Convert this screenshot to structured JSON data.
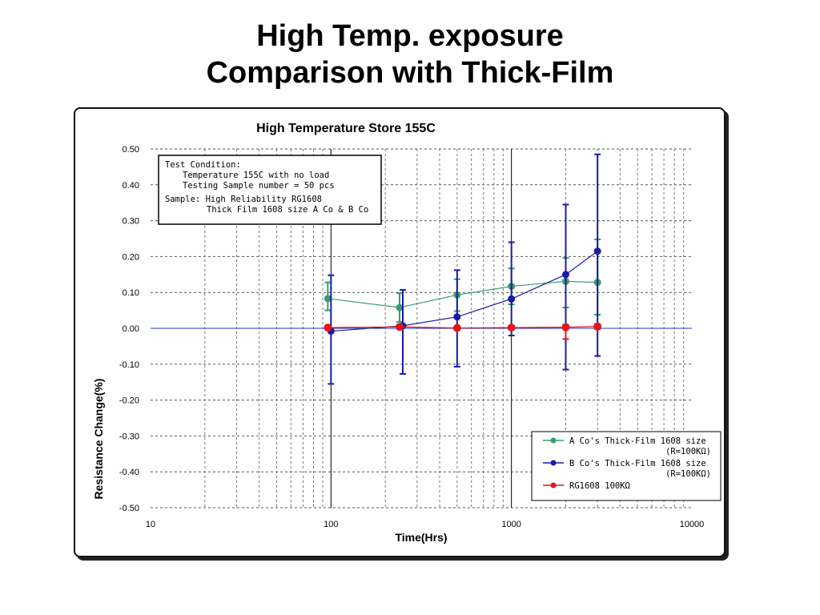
{
  "slide": {
    "title_line1": "High Temp. exposure",
    "title_line2": "Comparison with Thick-Film"
  },
  "chart_data": {
    "type": "line",
    "title": "High Temperature Store 155C",
    "xlabel": "Time(Hrs)",
    "ylabel": "Resistance Change(%)",
    "xscale": "log",
    "xlim": [
      10,
      10000
    ],
    "ylim": [
      -0.5,
      0.5
    ],
    "x_ticks": [
      "10",
      "100",
      "1000",
      "10000"
    ],
    "y_ticks": [
      "0.50",
      "0.40",
      "0.30",
      "0.20",
      "0.10",
      "0.00",
      "-0.10",
      "-0.20",
      "-0.30",
      "-0.40",
      "-0.50"
    ],
    "grid": true,
    "legend_position": "bottom-right",
    "annotation": {
      "lines": [
        "Test Condition:",
        "Temperature 155C  with no load",
        "Testing Sample number = 50 pcs",
        "Sample: High Reliability RG1608",
        "Thick Film 1608 size A Co & B Co"
      ]
    },
    "series": [
      {
        "name": "A Co's Thick-Film 1608 size",
        "name_line2": "(R=100KΩ)",
        "color": "#3a9a6e",
        "x": [
          96,
          240,
          500,
          1000,
          2000,
          3000
        ],
        "y": [
          0.083,
          0.058,
          0.093,
          0.117,
          0.131,
          0.128
        ],
        "error_low": [
          0.05,
          0.018,
          0.048,
          0.067,
          0.058,
          0.038
        ],
        "error_high": [
          0.128,
          0.098,
          0.137,
          0.167,
          0.196,
          0.248
        ]
      },
      {
        "name": "B Co's Thick-Film 1608 size",
        "name_line2": "(R=100KΩ)",
        "color": "#1a1aa8",
        "x": [
          100,
          250,
          500,
          1000,
          2000,
          3000
        ],
        "y": [
          -0.008,
          0.007,
          0.032,
          0.082,
          0.15,
          0.215
        ],
        "error_low": [
          -0.155,
          -0.127,
          -0.107,
          -0.02,
          -0.115,
          -0.077
        ],
        "error_high": [
          0.148,
          0.107,
          0.162,
          0.24,
          0.345,
          0.485
        ]
      },
      {
        "name": "RG1608 100KΩ",
        "color": "#e01818",
        "x": [
          96,
          240,
          500,
          1000,
          2000,
          3000
        ],
        "y": [
          0.002,
          0.004,
          0.001,
          0.002,
          0.003,
          0.005
        ],
        "error_low": [
          -0.002,
          -0.002,
          -0.003,
          -0.002,
          -0.03,
          -0.002
        ],
        "error_high": [
          0.006,
          0.01,
          0.005,
          0.006,
          0.01,
          0.012
        ]
      }
    ]
  }
}
